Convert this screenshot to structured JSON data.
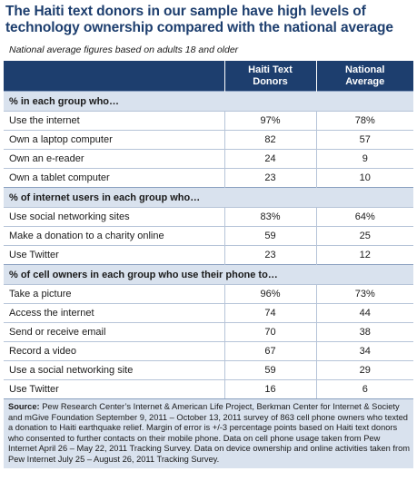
{
  "title": "The Haiti text donors in our sample have high levels of technology ownership compared with the national average",
  "subtitle": "National average figures based on adults 18 and older",
  "columns": {
    "haiti_line1": "Haiti Text",
    "haiti_line2": "Donors",
    "national_line1": "National",
    "national_line2": "Average"
  },
  "sections": [
    {
      "heading": "% in each group who…",
      "rows": [
        {
          "label": "Use the internet",
          "haiti": "97%",
          "national": "78%"
        },
        {
          "label": "Own a laptop computer",
          "haiti": "82",
          "national": "57"
        },
        {
          "label": "Own an e-reader",
          "haiti": "24",
          "national": "9"
        },
        {
          "label": "Own a tablet computer",
          "haiti": "23",
          "national": "10"
        }
      ]
    },
    {
      "heading": "% of internet users in each group who…",
      "rows": [
        {
          "label": "Use social networking sites",
          "haiti": "83%",
          "national": "64%"
        },
        {
          "label": "Make a donation to a charity online",
          "haiti": "59",
          "national": "25"
        },
        {
          "label": "Use Twitter",
          "haiti": "23",
          "national": "12"
        }
      ]
    },
    {
      "heading": "% of cell owners in each group who use their phone to…",
      "rows": [
        {
          "label": "Take a picture",
          "haiti": "96%",
          "national": "73%"
        },
        {
          "label": "Access the internet",
          "haiti": "74",
          "national": "44"
        },
        {
          "label": "Send or receive email",
          "haiti": "70",
          "national": "38"
        },
        {
          "label": "Record a video",
          "haiti": "67",
          "national": "34"
        },
        {
          "label": "Use a social networking site",
          "haiti": "59",
          "national": "29"
        },
        {
          "label": "Use Twitter",
          "haiti": "16",
          "national": "6"
        }
      ]
    }
  ],
  "source": {
    "label": "Source:",
    "text": " Pew Research Center’s Internet & American Life Project, Berkman Center for Internet & Society and mGive Foundation September 9, 2011 – October 13, 2011 survey of 863 cell phone owners who texted a donation to Haiti earthquake relief. Margin of error is +/-3 percentage points based on Haiti text donors who consented to further contacts on their mobile phone. Data on cell phone usage taken from Pew Internet April 26 – May 22, 2011 Tracking Survey. Data on device ownership and online activities taken from Pew Internet July 25 – August 26, 2011 Tracking Survey."
  },
  "colors": {
    "header_bg": "#1d3e6e",
    "section_bg": "#d9e2ee",
    "title": "#1d3e6e"
  }
}
